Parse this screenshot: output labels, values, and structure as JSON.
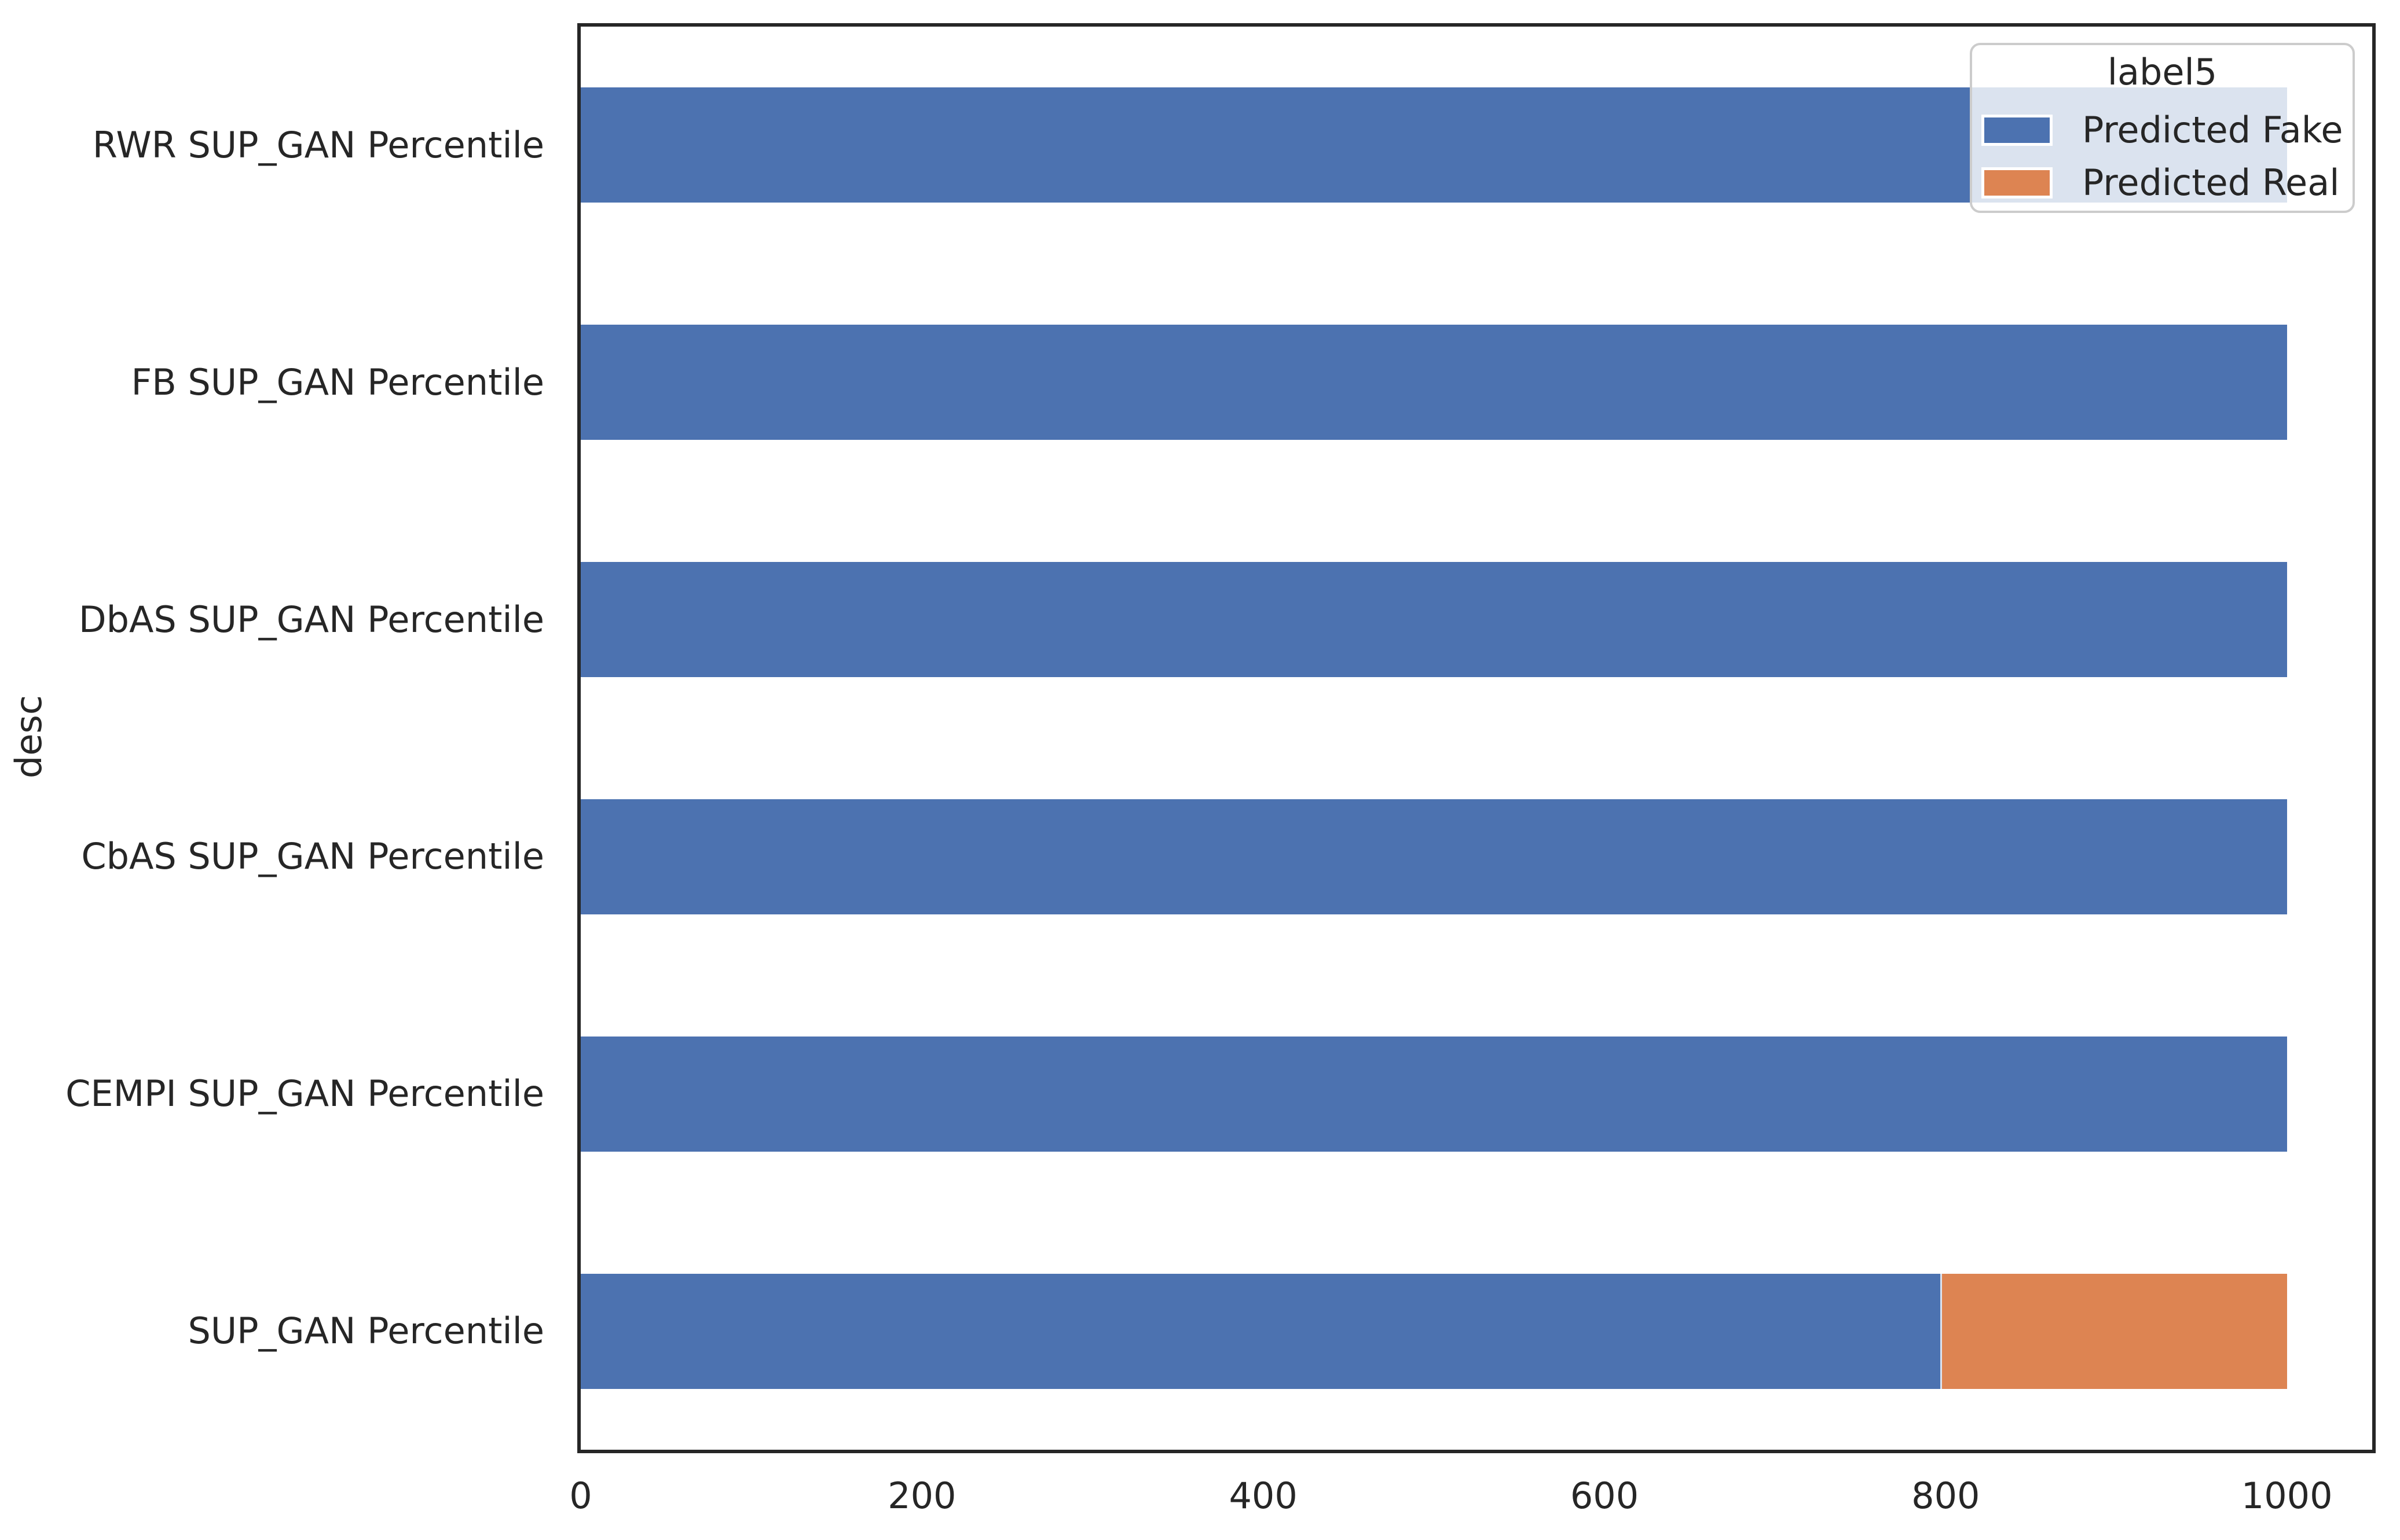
{
  "chart_data": {
    "type": "bar",
    "orientation": "horizontal",
    "stacked": true,
    "title": "",
    "xlabel": "",
    "ylabel": "desc",
    "categories": [
      "RWR SUP_GAN Percentile",
      "FB SUP_GAN Percentile",
      "DbAS SUP_GAN Percentile",
      "CbAS SUP_GAN Percentile",
      "CEMPI SUP_GAN Percentile",
      "SUP_GAN Percentile"
    ],
    "series": [
      {
        "name": "Predicted Fake",
        "color": "#4c72b0",
        "values": [
          1000,
          1000,
          1000,
          1000,
          1000,
          797
        ]
      },
      {
        "name": "Predicted Real",
        "color": "#dd8452",
        "values": [
          0,
          0,
          0,
          0,
          0,
          203
        ]
      }
    ],
    "x_ticks": [
      0,
      200,
      400,
      600,
      800,
      1000
    ],
    "xlim": [
      0,
      1050
    ],
    "grid": false,
    "legend": {
      "title": "label5",
      "position": "upper-right",
      "entries": [
        "Predicted Fake",
        "Predicted Real"
      ]
    },
    "style": {
      "text_color": "#262626",
      "spine_color": "#262626",
      "legend_border_color": "#cccccc",
      "legend_background": "rgba(255,255,255,0.8)",
      "segment_divider_color": "#dbe3ef",
      "background": "#ffffff"
    }
  }
}
